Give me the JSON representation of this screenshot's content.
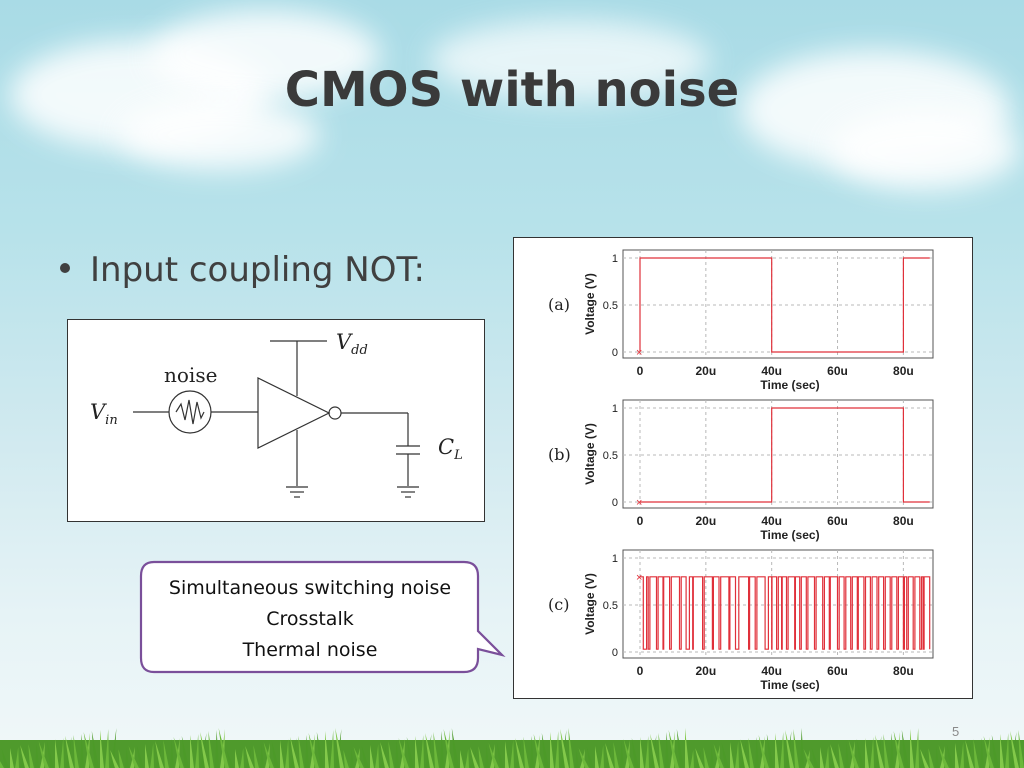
{
  "slide": {
    "title": "CMOS with noise",
    "bullet": "Input coupling NOT:",
    "slide_number": "5"
  },
  "circuit": {
    "noise_label": "noise",
    "vdd_label": "V",
    "vdd_sub": "dd",
    "vin_label": "V",
    "vin_sub": "in",
    "cl_label": "C",
    "cl_sub": "L"
  },
  "callout": {
    "lines": [
      "Simultaneous switching noise",
      "Crosstalk",
      "Thermal noise"
    ]
  },
  "colors": {
    "trace": "#e0303a",
    "title": "#3a3a3a",
    "callout_border": "#7a4f9a"
  },
  "chart_data": [
    {
      "type": "line",
      "panel_label": "(a)",
      "xlabel": "Time (sec)",
      "ylabel": "Voltage (V)",
      "x_tick_labels": [
        "0",
        "20u",
        "40u",
        "60u",
        "80u"
      ],
      "y_tick_labels": [
        "0",
        "0.5",
        "1"
      ],
      "xlim": [
        0,
        9e-05
      ],
      "ylim": [
        0,
        1
      ],
      "grid": true,
      "x": [
        0,
        0,
        4e-05,
        4e-05,
        8e-05,
        8e-05,
        8.8e-05
      ],
      "y": [
        0,
        1,
        1,
        0,
        0,
        1,
        1
      ]
    },
    {
      "type": "line",
      "panel_label": "(b)",
      "xlabel": "Time (sec)",
      "ylabel": "Voltage (V)",
      "x_tick_labels": [
        "0",
        "20u",
        "40u",
        "60u",
        "80u"
      ],
      "y_tick_labels": [
        "0",
        "0.5",
        "1"
      ],
      "xlim": [
        0,
        9e-05
      ],
      "ylim": [
        0,
        1
      ],
      "grid": true,
      "x": [
        0,
        4e-05,
        4e-05,
        8e-05,
        8e-05,
        8.8e-05
      ],
      "y": [
        0,
        0,
        1,
        1,
        0,
        0
      ]
    },
    {
      "type": "line",
      "panel_label": "(c)",
      "xlabel": "Time (sec)",
      "ylabel": "Voltage (V)",
      "x_tick_labels": [
        "0",
        "20u",
        "40u",
        "60u",
        "80u"
      ],
      "y_tick_labels": [
        "0",
        "0.5",
        "1"
      ],
      "xlim": [
        0,
        9e-05
      ],
      "ylim": [
        0,
        1
      ],
      "grid": true,
      "x": [
        0,
        1e-06,
        2e-06,
        2.5e-06,
        3e-06,
        5e-06,
        5.5e-06,
        7e-06,
        7.2e-06,
        9e-06,
        9.5e-06,
        1.2e-05,
        1.25e-05,
        1.4e-05,
        1.5e-05,
        1.6e-05,
        1.62e-05,
        1.9e-05,
        1.95e-05,
        2.2e-05,
        2.23e-05,
        2.4e-05,
        2.45e-05,
        2.7e-05,
        2.73e-05,
        2.9e-05,
        3e-05,
        3.3e-05,
        3.33e-05,
        3.5e-05,
        3.55e-05,
        3.8e-05,
        3.9e-05,
        4e-05,
        4.01e-05,
        4.15e-05,
        4.2e-05,
        4.3e-05,
        4.32e-05,
        4.45e-05,
        4.5e-05,
        4.7e-05,
        4.72e-05,
        4.85e-05,
        4.9e-05,
        5.05e-05,
        5.1e-05,
        5.3e-05,
        5.35e-05,
        5.55e-05,
        5.6e-05,
        5.75e-05,
        5.78e-05,
        6e-05,
        6.05e-05,
        6.2e-05,
        6.25e-05,
        6.4e-05,
        6.45e-05,
        6.6e-05,
        6.63e-05,
        6.8e-05,
        6.85e-05,
        7e-05,
        7.05e-05,
        7.2e-05,
        7.25e-05,
        7.4e-05,
        7.45e-05,
        7.6e-05,
        7.65e-05,
        7.8e-05,
        7.85e-05,
        8e-05,
        8.03e-05,
        8.1e-05,
        8.15e-05,
        8.3e-05,
        8.35e-05,
        8.5e-05,
        8.55e-05,
        8.6e-05,
        8.63e-05,
        8.8e-05
      ],
      "y": [
        0.8,
        0.03,
        0.8,
        0.03,
        0.8,
        0.03,
        0.8,
        0.03,
        0.8,
        0.03,
        0.8,
        0.03,
        0.8,
        0.03,
        0.8,
        0.03,
        0.8,
        0.03,
        0.8,
        0.03,
        0.8,
        0.03,
        0.8,
        0.03,
        0.8,
        0.03,
        0.8,
        0.03,
        0.8,
        0.03,
        0.8,
        0.03,
        0.8,
        0.03,
        0.8,
        0.03,
        0.8,
        0.03,
        0.8,
        0.03,
        0.8,
        0.03,
        0.8,
        0.03,
        0.8,
        0.03,
        0.8,
        0.03,
        0.8,
        0.03,
        0.8,
        0.03,
        0.8,
        0.03,
        0.8,
        0.03,
        0.8,
        0.03,
        0.8,
        0.03,
        0.8,
        0.03,
        0.8,
        0.03,
        0.8,
        0.03,
        0.8,
        0.03,
        0.8,
        0.03,
        0.8,
        0.03,
        0.8,
        0.03,
        0.8,
        0.03,
        0.8,
        0.03,
        0.8,
        0.03,
        0.8,
        0.03,
        0.8,
        0.03
      ]
    }
  ]
}
